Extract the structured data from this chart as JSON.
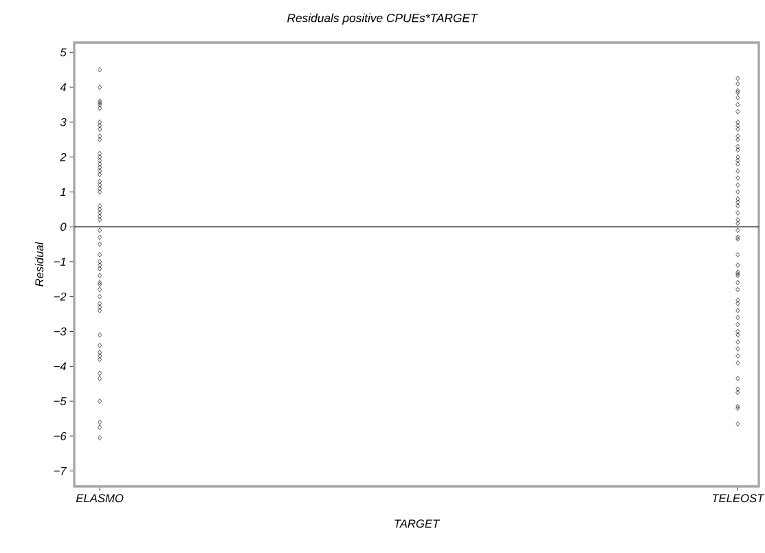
{
  "chart_data": {
    "type": "scatter",
    "title": "Residuals positive CPUEs*TARGET",
    "xlabel": "TARGET",
    "ylabel": "Residual",
    "categories": [
      "ELASMO",
      "TELEOST"
    ],
    "series": [
      {
        "color": "#000000",
        "x": [
          "ELASMO",
          "ELASMO",
          "ELASMO",
          "ELASMO",
          "ELASMO",
          "ELASMO",
          "ELASMO",
          "ELASMO",
          "ELASMO",
          "ELASMO",
          "ELASMO",
          "ELASMO",
          "ELASMO",
          "ELASMO",
          "ELASMO",
          "ELASMO",
          "ELASMO",
          "ELASMO",
          "ELASMO",
          "ELASMO",
          "ELASMO",
          "ELASMO",
          "ELASMO",
          "ELASMO",
          "ELASMO",
          "ELASMO",
          "ELASMO",
          "ELASMO",
          "ELASMO",
          "ELASMO",
          "ELASMO",
          "ELASMO",
          "ELASMO",
          "ELASMO",
          "ELASMO",
          "ELASMO",
          "ELASMO",
          "ELASMO",
          "ELASMO",
          "ELASMO",
          "ELASMO",
          "ELASMO",
          "ELASMO",
          "ELASMO",
          "ELASMO",
          "ELASMO",
          "ELASMO",
          "ELASMO",
          "ELASMO",
          "ELASMO",
          "ELASMO",
          "ELASMO",
          "ELASMO"
        ],
        "values": [
          4.5,
          4.0,
          3.6,
          3.55,
          3.5,
          3.4,
          3.0,
          2.9,
          2.8,
          2.6,
          2.5,
          2.1,
          2.0,
          1.9,
          1.8,
          1.7,
          1.6,
          1.5,
          1.3,
          1.2,
          1.1,
          1.0,
          0.6,
          0.5,
          0.4,
          0.3,
          0.2,
          -0.1,
          -0.3,
          -0.5,
          -0.8,
          -1.0,
          -1.1,
          -1.2,
          -1.4,
          -1.6,
          -1.65,
          -1.8,
          -2.0,
          -2.2,
          -2.3,
          -2.4,
          -3.1,
          -3.4,
          -3.6,
          -3.7,
          -3.8,
          -4.2,
          -4.35,
          -5.0,
          -5.6,
          -5.75,
          -6.05
        ]
      },
      {
        "color": "#000000",
        "x": [
          "TELEOST",
          "TELEOST",
          "TELEOST",
          "TELEOST",
          "TELEOST",
          "TELEOST",
          "TELEOST",
          "TELEOST",
          "TELEOST",
          "TELEOST",
          "TELEOST",
          "TELEOST",
          "TELEOST",
          "TELEOST",
          "TELEOST",
          "TELEOST",
          "TELEOST",
          "TELEOST",
          "TELEOST",
          "TELEOST",
          "TELEOST",
          "TELEOST",
          "TELEOST",
          "TELEOST",
          "TELEOST",
          "TELEOST",
          "TELEOST",
          "TELEOST",
          "TELEOST",
          "TELEOST",
          "TELEOST",
          "TELEOST",
          "TELEOST",
          "TELEOST",
          "TELEOST",
          "TELEOST",
          "TELEOST",
          "TELEOST",
          "TELEOST",
          "TELEOST",
          "TELEOST",
          "TELEOST",
          "TELEOST",
          "TELEOST",
          "TELEOST",
          "TELEOST",
          "TELEOST",
          "TELEOST",
          "TELEOST",
          "TELEOST",
          "TELEOST",
          "TELEOST",
          "TELEOST",
          "TELEOST"
        ],
        "values": [
          4.25,
          4.1,
          3.9,
          3.85,
          3.7,
          3.5,
          3.3,
          3.0,
          2.9,
          2.8,
          2.6,
          2.5,
          2.3,
          2.2,
          2.0,
          1.9,
          1.8,
          1.6,
          1.4,
          1.2,
          1.0,
          0.8,
          0.7,
          0.6,
          0.4,
          0.2,
          0.1,
          -0.1,
          -0.3,
          -0.35,
          -0.8,
          -1.1,
          -1.3,
          -1.35,
          -1.4,
          -1.6,
          -1.8,
          -2.1,
          -2.2,
          -2.4,
          -2.6,
          -2.8,
          -3.0,
          -3.1,
          -3.3,
          -3.5,
          -3.7,
          -3.9,
          -4.35,
          -4.65,
          -4.75,
          -5.15,
          -5.2,
          -5.65
        ]
      }
    ],
    "ylim": [
      -7.44,
      5.28
    ],
    "yticks": [
      {
        "value": -7,
        "label": "−7"
      },
      {
        "value": -6,
        "label": "−6"
      },
      {
        "value": -5,
        "label": "−5"
      },
      {
        "value": -4,
        "label": "−4"
      },
      {
        "value": -3,
        "label": "−3"
      },
      {
        "value": -2,
        "label": "−2"
      },
      {
        "value": -1,
        "label": "−1"
      },
      0,
      1,
      2,
      3,
      4,
      5
    ],
    "ref_lines": [
      {
        "axis": "y",
        "value": 0,
        "color": "#000000"
      }
    ],
    "marker": "diamond",
    "grid": false
  }
}
